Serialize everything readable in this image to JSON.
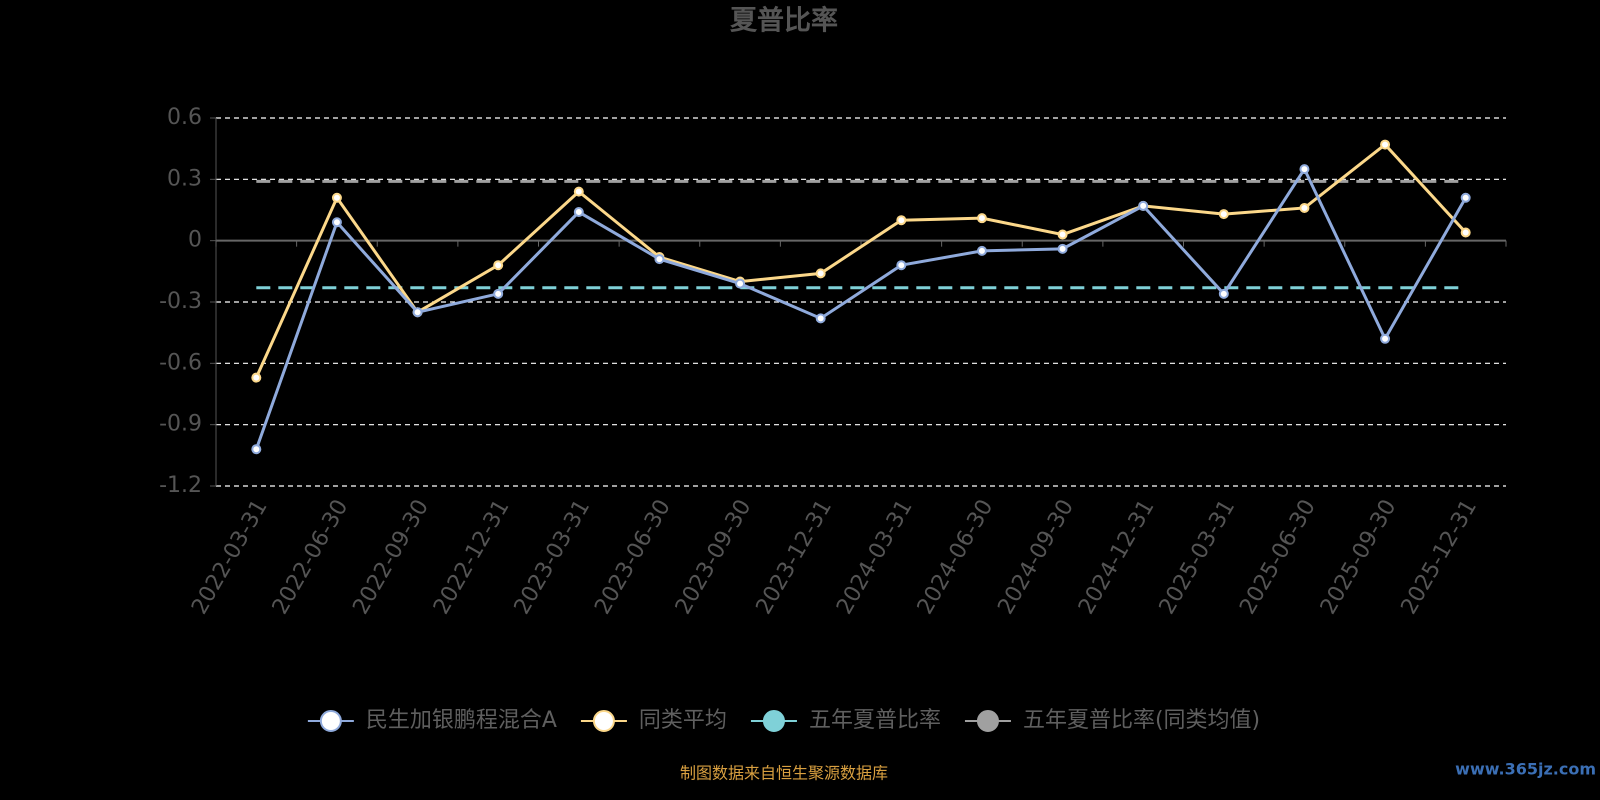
{
  "chart_data": {
    "type": "line",
    "title": "夏普比率",
    "categories": [
      "2022-03-31",
      "2022-06-30",
      "2022-09-30",
      "2022-12-31",
      "2023-03-31",
      "2023-06-30",
      "2023-09-30",
      "2023-12-31",
      "2024-03-31",
      "2024-06-30",
      "2024-09-30",
      "2024-12-31",
      "2025-03-31",
      "2025-06-30",
      "2025-09-30",
      "2025-12-31"
    ],
    "series": [
      {
        "name": "民生加银鹏程混合A",
        "color": "#8faadc",
        "line_style": "solid",
        "markers": true,
        "values": [
          -1.02,
          0.09,
          -0.35,
          -0.26,
          0.14,
          -0.09,
          -0.21,
          -0.38,
          -0.12,
          -0.05,
          -0.04,
          0.17,
          -0.26,
          0.35,
          -0.48,
          0.21
        ]
      },
      {
        "name": "同类平均",
        "color": "#fcd88a",
        "line_style": "solid",
        "markers": true,
        "values": [
          -0.67,
          0.21,
          -0.35,
          -0.12,
          0.24,
          -0.08,
          -0.2,
          -0.16,
          0.1,
          0.11,
          0.03,
          0.17,
          0.13,
          0.16,
          0.47,
          0.04
        ]
      },
      {
        "name": "五年夏普比率",
        "color": "#7fd1d8",
        "line_style": "dashed",
        "markers": false,
        "values": [
          -0.23,
          -0.23,
          -0.23,
          -0.23,
          -0.23,
          -0.23,
          -0.23,
          -0.23,
          -0.23,
          -0.23,
          -0.23,
          -0.23,
          -0.23,
          -0.23,
          -0.23,
          -0.23
        ]
      },
      {
        "name": "五年夏普比率(同类均值)",
        "color": "#a0a0a0",
        "line_style": "dashed",
        "markers": false,
        "values": [
          0.29,
          0.29,
          0.29,
          0.29,
          0.29,
          0.29,
          0.29,
          0.29,
          0.29,
          0.29,
          0.29,
          0.29,
          0.29,
          0.29,
          0.29,
          0.29
        ]
      }
    ],
    "ylim": [
      -1.2,
      0.6
    ],
    "yticks": [
      0.6,
      0.3,
      0,
      -0.3,
      -0.6,
      -0.9,
      -1.2
    ],
    "grid": true,
    "legend": "bottom",
    "source": "制图数据来自恒生聚源数据库",
    "watermark": "www.365jz.com"
  }
}
